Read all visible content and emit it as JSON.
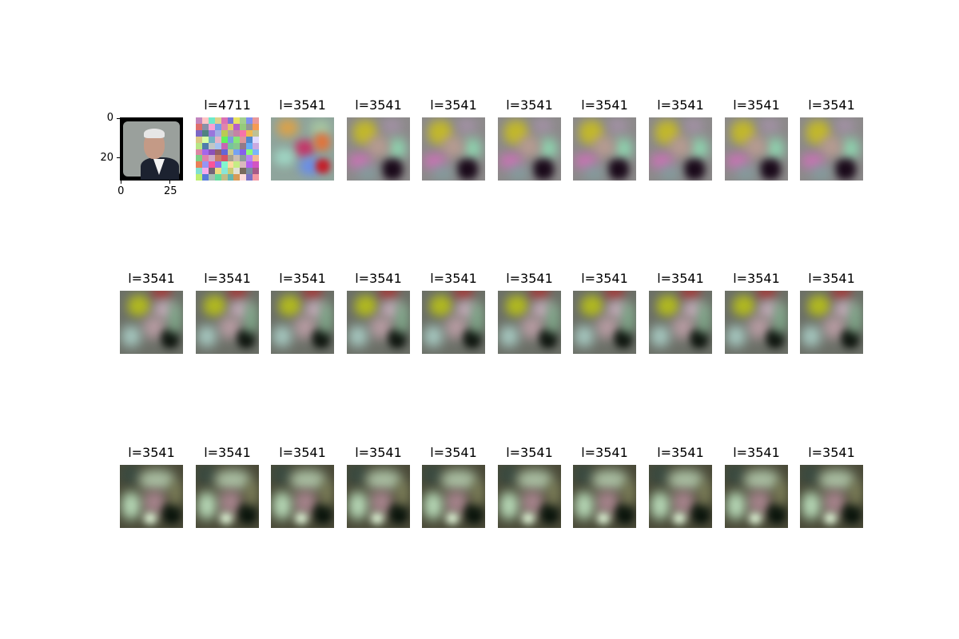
{
  "figure": {
    "grid": {
      "rows": 3,
      "cols": 10
    },
    "original": {
      "kind": "portrait-photo",
      "x_ticks": [
        "0",
        "25"
      ],
      "y_ticks": [
        "0",
        "20"
      ]
    },
    "panels": [
      {
        "title": "l=4711",
        "look": "noise"
      },
      {
        "title": "l=3541",
        "look": "blocks"
      },
      {
        "title": "l=3541",
        "look": "early"
      },
      {
        "title": "l=3541",
        "look": "early"
      },
      {
        "title": "l=3541",
        "look": "early"
      },
      {
        "title": "l=3541",
        "look": "early"
      },
      {
        "title": "l=3541",
        "look": "early"
      },
      {
        "title": "l=3541",
        "look": "early"
      },
      {
        "title": "l=3541",
        "look": "early"
      },
      {
        "title": "l=3541",
        "look": "mid"
      },
      {
        "title": "l=3541",
        "look": "mid"
      },
      {
        "title": "l=3541",
        "look": "mid"
      },
      {
        "title": "l=3541",
        "look": "mid"
      },
      {
        "title": "l=3541",
        "look": "mid"
      },
      {
        "title": "l=3541",
        "look": "mid"
      },
      {
        "title": "l=3541",
        "look": "mid"
      },
      {
        "title": "l=3541",
        "look": "mid"
      },
      {
        "title": "l=3541",
        "look": "mid"
      },
      {
        "title": "l=3541",
        "look": "mid"
      },
      {
        "title": "l=3541",
        "look": "late"
      },
      {
        "title": "l=3541",
        "look": "late"
      },
      {
        "title": "l=3541",
        "look": "late"
      },
      {
        "title": "l=3541",
        "look": "late"
      },
      {
        "title": "l=3541",
        "look": "late"
      },
      {
        "title": "l=3541",
        "look": "late"
      },
      {
        "title": "l=3541",
        "look": "late"
      },
      {
        "title": "l=3541",
        "look": "late"
      },
      {
        "title": "l=3541",
        "look": "late"
      },
      {
        "title": "l=3541",
        "look": "late"
      }
    ]
  }
}
